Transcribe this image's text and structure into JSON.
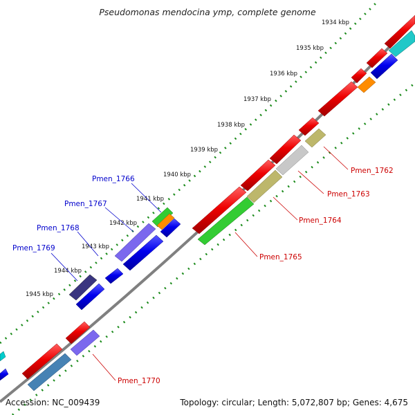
{
  "title": "Pseudomonas mendocina ymp, complete genome",
  "accession": "Accession: NC_009439",
  "summary": "Topology: circular; Length: 5,072,807 bp; Genes: 4,675",
  "kbp_ticks": [
    "1934 kbp",
    "1935 kbp",
    "1936 kbp",
    "1937 kbp",
    "1938 kbp",
    "1939 kbp",
    "1940 kbp",
    "1941 kbp",
    "1942 kbp",
    "1943 kbp",
    "1944 kbp",
    "1945 kbp"
  ],
  "gene_labels_left": [
    "Pmen_1766",
    "Pmen_1767",
    "Pmen_1768",
    "Pmen_1769"
  ],
  "gene_labels_right": [
    "Pmen_1762",
    "Pmen_1763",
    "Pmen_1764",
    "Pmen_1765",
    "Pmen_1770"
  ],
  "colors": {
    "backbone": "#808080",
    "dots": "#1a8a1a",
    "forward_cds": "#ee0000",
    "reverse_cds": "#0000ee",
    "label_left": "#0000cc",
    "label_right": "#cc0000"
  }
}
